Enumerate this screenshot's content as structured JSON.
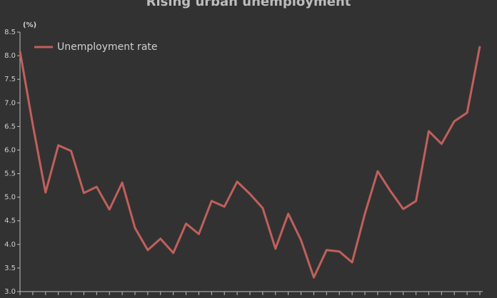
{
  "chart_data": {
    "type": "line",
    "title": "Rising urban unemployment",
    "y_label": "(%)",
    "categories": [
      null,
      null,
      null,
      null,
      null,
      null,
      null,
      null,
      null,
      null,
      null,
      null,
      null,
      null,
      null,
      null,
      null,
      null,
      null,
      null,
      null,
      null,
      null,
      null,
      null,
      null,
      null,
      null,
      null,
      null,
      null,
      null,
      null,
      null,
      null,
      null,
      null
    ],
    "series": [
      {
        "name": "Unemployment rate",
        "color": "#c0605c",
        "values": [
          8.09,
          6.54,
          5.1,
          6.1,
          5.98,
          5.09,
          5.22,
          4.74,
          5.31,
          4.35,
          3.88,
          4.12,
          3.82,
          4.44,
          4.22,
          4.92,
          4.8,
          5.33,
          5.07,
          4.77,
          3.91,
          4.65,
          4.09,
          3.3,
          3.88,
          3.85,
          3.62,
          4.65,
          5.55,
          5.13,
          4.75,
          4.92,
          6.4,
          6.13,
          6.61,
          6.79,
          8.2
        ]
      }
    ],
    "ylim": [
      3.0,
      8.5
    ],
    "yticks": [
      {
        "value": 3,
        "label": "3.0"
      },
      3.5,
      {
        "value": 4,
        "label": "4.0"
      },
      4.5,
      {
        "value": 5,
        "label": "5.0"
      },
      5.5,
      {
        "value": 6,
        "label": "6.0"
      },
      6.5,
      {
        "value": 7,
        "label": "7.0"
      },
      7.5,
      {
        "value": 8,
        "label": "8.0"
      },
      8.5
    ],
    "legend": "top-left"
  }
}
